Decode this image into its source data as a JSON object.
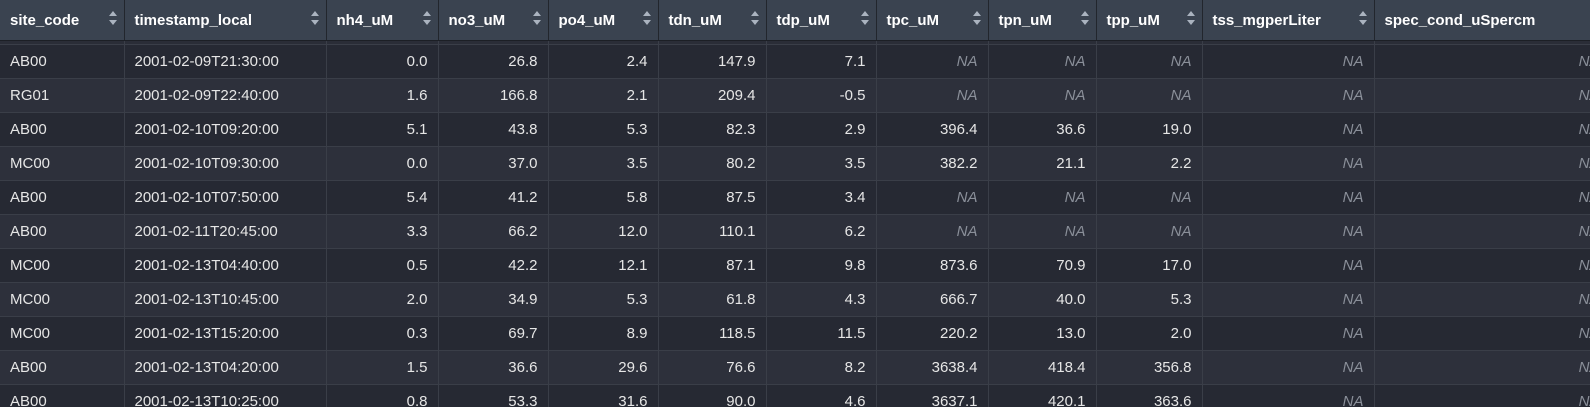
{
  "columns": [
    "site_code",
    "timestamp_local",
    "nh4_uM",
    "no3_uM",
    "po4_uM",
    "tdn_uM",
    "tdp_uM",
    "tpc_uM",
    "tpn_uM",
    "tpp_uM",
    "tss_mgperLiter",
    "spec_cond_uSpercm"
  ],
  "rows": [
    [
      "AB00",
      "2001-02-09T21:30:00",
      "0.0",
      "26.8",
      "2.4",
      "147.9",
      "7.1",
      "NA",
      "NA",
      "NA",
      "NA",
      "NA"
    ],
    [
      "RG01",
      "2001-02-09T22:40:00",
      "1.6",
      "166.8",
      "2.1",
      "209.4",
      "-0.5",
      "NA",
      "NA",
      "NA",
      "NA",
      "NA"
    ],
    [
      "AB00",
      "2001-02-10T09:20:00",
      "5.1",
      "43.8",
      "5.3",
      "82.3",
      "2.9",
      "396.4",
      "36.6",
      "19.0",
      "NA",
      "NA"
    ],
    [
      "MC00",
      "2001-02-10T09:30:00",
      "0.0",
      "37.0",
      "3.5",
      "80.2",
      "3.5",
      "382.2",
      "21.1",
      "2.2",
      "NA",
      "NA"
    ],
    [
      "AB00",
      "2001-02-10T07:50:00",
      "5.4",
      "41.2",
      "5.8",
      "87.5",
      "3.4",
      "NA",
      "NA",
      "NA",
      "NA",
      "NA"
    ],
    [
      "AB00",
      "2001-02-11T20:45:00",
      "3.3",
      "66.2",
      "12.0",
      "110.1",
      "6.2",
      "NA",
      "NA",
      "NA",
      "NA",
      "NA"
    ],
    [
      "MC00",
      "2001-02-13T04:40:00",
      "0.5",
      "42.2",
      "12.1",
      "87.1",
      "9.8",
      "873.6",
      "70.9",
      "17.0",
      "NA",
      "NA"
    ],
    [
      "MC00",
      "2001-02-13T10:45:00",
      "2.0",
      "34.9",
      "5.3",
      "61.8",
      "4.3",
      "666.7",
      "40.0",
      "5.3",
      "NA",
      "NA"
    ],
    [
      "MC00",
      "2001-02-13T15:20:00",
      "0.3",
      "69.7",
      "8.9",
      "118.5",
      "11.5",
      "220.2",
      "13.0",
      "2.0",
      "NA",
      "NA"
    ],
    [
      "AB00",
      "2001-02-13T04:20:00",
      "1.5",
      "36.6",
      "29.6",
      "76.6",
      "8.2",
      "3638.4",
      "418.4",
      "356.8",
      "NA",
      "NA"
    ],
    [
      "AB00",
      "2001-02-13T10:25:00",
      "0.8",
      "53.3",
      "31.6",
      "90.0",
      "4.6",
      "3637.1",
      "420.1",
      "363.6",
      "NA",
      "NA"
    ]
  ],
  "colors": {
    "header_bg": "#3a4350",
    "row_even": "#262933",
    "row_odd": "#2d303b",
    "na_text": "#8a8f99"
  },
  "icons": {
    "sort": "sort-arrows-icon"
  }
}
